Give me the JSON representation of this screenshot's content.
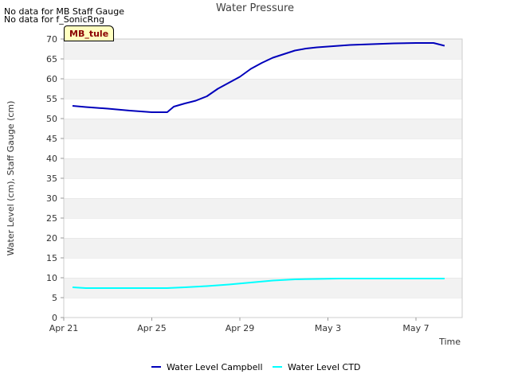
{
  "notes": [
    "No data for MB Staff Gauge",
    "No data for f_SonicRng"
  ],
  "station_label": "MB_tule",
  "chart_data": {
    "type": "line",
    "title": "Water Pressure",
    "xlabel": "Time",
    "ylabel": "Water Level (cm), Staff Gauge (cm)",
    "ylim": [
      0,
      70
    ],
    "yticks": [
      0,
      5,
      10,
      15,
      20,
      25,
      30,
      35,
      40,
      45,
      50,
      55,
      60,
      65,
      70
    ],
    "xlim_days": [
      0,
      18.1
    ],
    "xtick_labels": [
      {
        "day": 0,
        "label": "Apr 21"
      },
      {
        "day": 4,
        "label": "Apr 25"
      },
      {
        "day": 8,
        "label": "Apr 29"
      },
      {
        "day": 12,
        "label": "May 3"
      },
      {
        "day": 16,
        "label": "May 7"
      }
    ],
    "grid": "alternating horizontal bands",
    "legend_position": "bottom-center",
    "series": [
      {
        "name": "Water Level Campbell",
        "color": "#0000bb",
        "x": [
          0.4,
          1,
          2,
          3,
          4,
          4.7,
          5.0,
          5.5,
          6,
          6.5,
          7,
          7.5,
          8,
          8.5,
          9,
          9.5,
          10,
          10.5,
          11,
          11.5,
          12,
          13,
          14,
          15,
          16,
          16.8,
          17.3
        ],
        "y": [
          53.2,
          52.9,
          52.5,
          52.0,
          51.6,
          51.6,
          53.0,
          53.8,
          54.5,
          55.6,
          57.5,
          59.0,
          60.5,
          62.5,
          64.0,
          65.3,
          66.2,
          67.1,
          67.6,
          67.9,
          68.1,
          68.5,
          68.7,
          68.9,
          69.0,
          69.0,
          68.3
        ]
      },
      {
        "name": "Water Level CTD",
        "color": "#00ffff",
        "x": [
          0.4,
          1,
          2,
          3,
          4,
          4.7,
          5.5,
          6.5,
          7.5,
          8.5,
          9.5,
          10.5,
          11.5,
          12.5,
          13.5,
          14.5,
          15.5,
          16.5,
          17.3
        ],
        "y": [
          7.6,
          7.4,
          7.4,
          7.4,
          7.4,
          7.4,
          7.6,
          7.9,
          8.3,
          8.8,
          9.3,
          9.6,
          9.7,
          9.8,
          9.8,
          9.8,
          9.8,
          9.8,
          9.8
        ]
      }
    ]
  }
}
